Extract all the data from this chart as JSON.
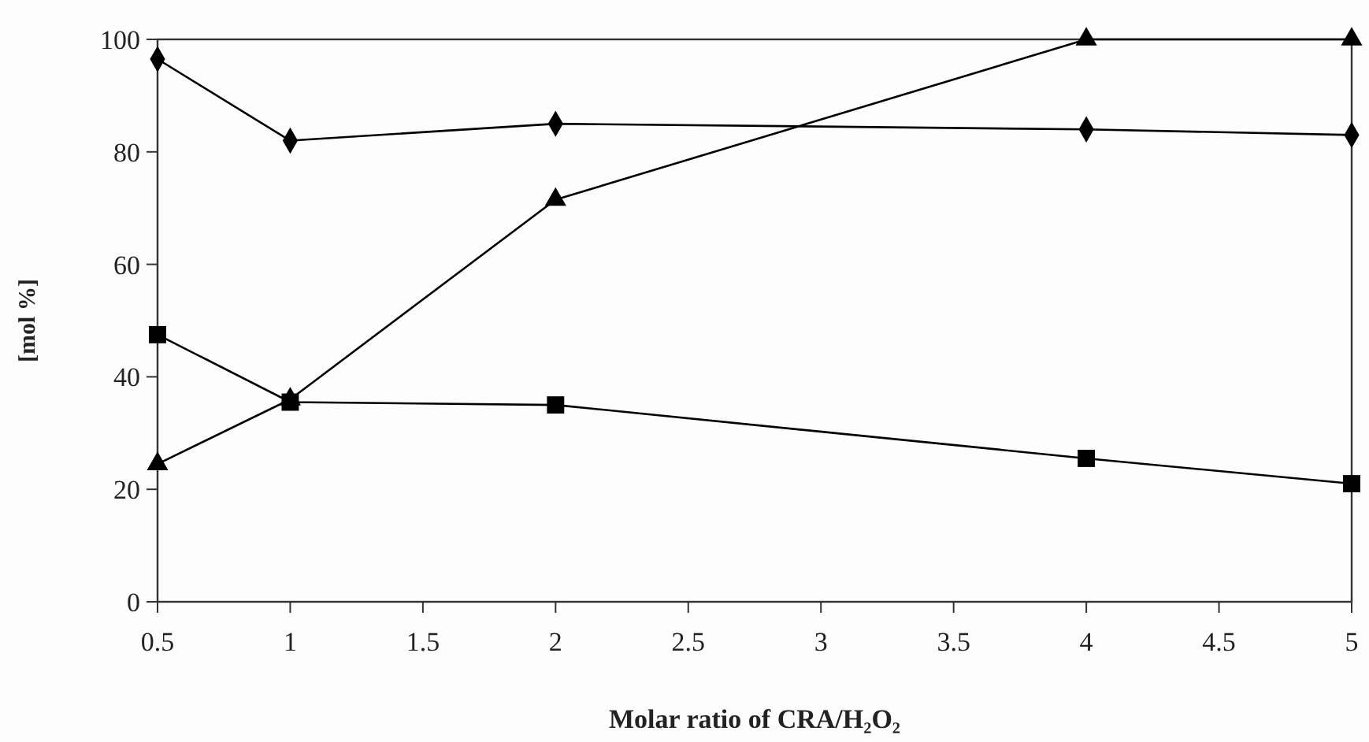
{
  "chart_data": {
    "type": "line",
    "xlabel": "Molar ratio of CRA/H₂O₂",
    "ylabel": "[mol %]",
    "x": [
      0.5,
      1,
      2,
      4,
      5
    ],
    "xlim": [
      0.5,
      5
    ],
    "xticks": [
      0.5,
      1,
      1.5,
      2,
      2.5,
      3,
      3.5,
      4,
      4.5,
      5
    ],
    "ylim": [
      0,
      100
    ],
    "yticks": [
      0,
      20,
      40,
      60,
      80,
      100
    ],
    "grid": false,
    "series": [
      {
        "color": "#000000",
        "marker": "diamond",
        "values": [
          96.5,
          82,
          85,
          84,
          83
        ]
      },
      {
        "color": "#000000",
        "marker": "square",
        "values": [
          47.5,
          35.5,
          35,
          25.5,
          21
        ]
      },
      {
        "color": "#000000",
        "marker": "triangle",
        "values": [
          24.5,
          36,
          71.5,
          100,
          100
        ]
      }
    ]
  }
}
